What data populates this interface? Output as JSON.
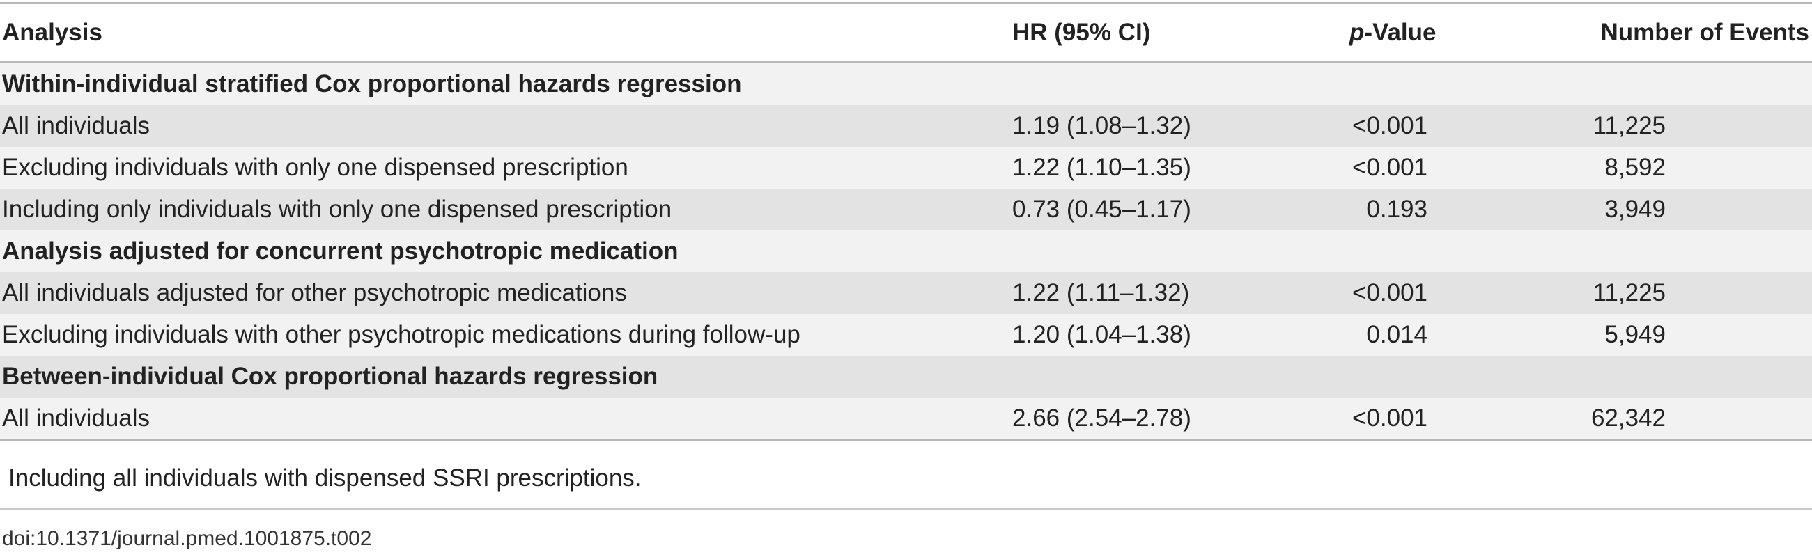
{
  "table": {
    "headers": {
      "analysis": "Analysis",
      "hr": "HR (95% CI)",
      "p_prefix": "p",
      "p_suffix": "-Value",
      "events": "Number of Events"
    },
    "sections": [
      {
        "title": "Within-individual stratified Cox proportional hazards regression",
        "rows": [
          {
            "analysis": "All individuals",
            "hr": "1.19 (1.08–1.32)",
            "p": "<0.001",
            "events": "11,225"
          },
          {
            "analysis": "Excluding individuals with only one dispensed prescription",
            "hr": "1.22 (1.10–1.35)",
            "p": "<0.001",
            "events": "8,592"
          },
          {
            "analysis": "Including only individuals with only one dispensed prescription",
            "hr": "0.73 (0.45–1.17)",
            "p": "0.193",
            "events": "3,949"
          }
        ]
      },
      {
        "title": "Analysis adjusted for concurrent psychotropic medication",
        "rows": [
          {
            "analysis": "All individuals adjusted for other psychotropic medications",
            "hr": "1.22 (1.11–1.32)",
            "p": "<0.001",
            "events": "11,225"
          },
          {
            "analysis": "Excluding individuals with other psychotropic medications during follow-up",
            "hr": "1.20 (1.04–1.38)",
            "p": "0.014",
            "events": "5,949"
          }
        ]
      },
      {
        "title": "Between-individual Cox proportional hazards regression",
        "rows": [
          {
            "analysis": "All individuals",
            "hr": "2.66 (2.54–2.78)",
            "p": "<0.001",
            "events": "62,342"
          }
        ]
      }
    ]
  },
  "footnote": "Including all individuals with dispensed SSRI prescriptions.",
  "doi": "doi:10.1371/journal.pmed.1001875.t002"
}
